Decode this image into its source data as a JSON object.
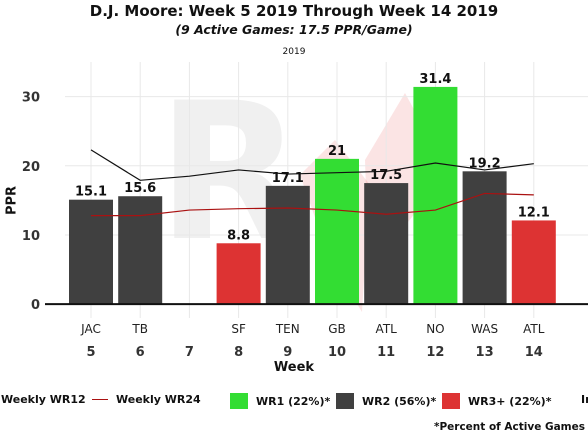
{
  "title": "D.J. Moore: Week 5 2019 Through Week 14 2019",
  "subtitle": "(9 Active Games: 17.5 PPR/Game)",
  "season_label": "2019",
  "footnote": "*Percent of Active Games",
  "legend": [
    {
      "label": "Weekly WR12",
      "kind": "line",
      "color": "#111111"
    },
    {
      "label": "Weekly WR24",
      "kind": "line",
      "color": "#aa1111"
    },
    {
      "label": "WR1 (22%)*",
      "kind": "swatch",
      "color": "#33dd33"
    },
    {
      "label": "WR2 (56%)*",
      "kind": "swatch",
      "color": "#404040"
    },
    {
      "label": "WR3+ (22%)*",
      "kind": "swatch",
      "color": "#dd3333"
    },
    {
      "label": "In",
      "kind": "text",
      "color": "#111111"
    }
  ],
  "chart_data": {
    "type": "bar",
    "xlabel": "Week",
    "ylabel": "PPR",
    "ylim": [
      -2,
      35
    ],
    "yticks": [
      0,
      10,
      20,
      30
    ],
    "grid": true,
    "weeks": [
      5,
      6,
      7,
      8,
      9,
      10,
      11,
      12,
      13,
      14
    ],
    "opponents": [
      "JAC",
      "TB",
      "",
      "SF",
      "TEN",
      "GB",
      "ATL",
      "NO",
      "WAS",
      "ATL"
    ],
    "values": [
      15.1,
      15.6,
      null,
      8.8,
      17.1,
      21,
      17.5,
      31.4,
      19.2,
      12.1
    ],
    "value_labels": [
      "15.1",
      "15.6",
      "",
      "8.8",
      "17.1",
      "21",
      "17.5",
      "31.4",
      "19.2",
      "12.1"
    ],
    "tiers": [
      "WR2",
      "WR2",
      "",
      "WR3+",
      "WR2",
      "WR1",
      "WR2",
      "WR1",
      "WR2",
      "WR3+"
    ],
    "tier_colors": {
      "WR1": "#33dd33",
      "WR2": "#404040",
      "WR3+": "#dd3333"
    },
    "series": [
      {
        "name": "Weekly WR12",
        "color": "#111111",
        "values": [
          22.3,
          17.9,
          18.5,
          19.4,
          18.8,
          19.0,
          19.2,
          20.4,
          19.4,
          20.3
        ]
      },
      {
        "name": "Weekly WR24",
        "color": "#aa1111",
        "values": [
          12.8,
          12.8,
          13.6,
          13.8,
          13.9,
          13.6,
          13.0,
          13.6,
          16.0,
          15.8
        ]
      }
    ]
  }
}
